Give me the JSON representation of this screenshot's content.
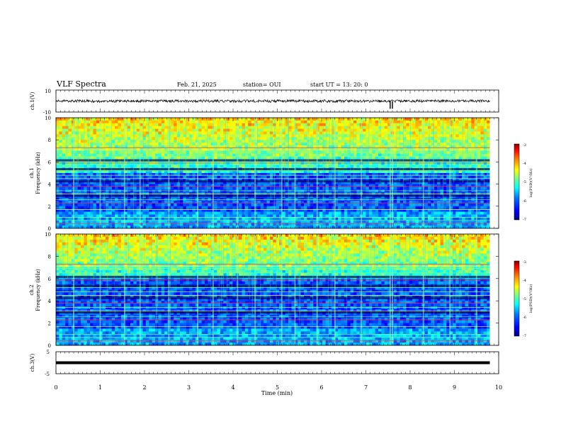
{
  "header": {
    "title": "VLF Spectra",
    "date": "Feb. 21, 2025",
    "station": "station= OUI",
    "start_ut": "start  UT  =   13: 20: 0"
  },
  "chart_data": [
    {
      "id": "ch1-waveform",
      "type": "line",
      "ylabel": "ch.1(V)",
      "ylim": [
        -10,
        10
      ],
      "yticks": [
        "10",
        "-10"
      ],
      "baseline": 0,
      "description_color": "#000000",
      "dropouts_min": [
        7.55,
        7.6
      ]
    },
    {
      "id": "ch1-spectrogram",
      "type": "heatmap",
      "ylabel": "ch.1\nFrequency (kHz)",
      "ylabel_line1": "ch.1",
      "ylabel_line2": "Frequency  (kHz)",
      "ylim": [
        0,
        10
      ],
      "yticks": [
        "0",
        "2",
        "4",
        "6",
        "8",
        "10"
      ],
      "xlim": [
        0,
        10
      ],
      "colorbar": {
        "label": "log(PSD)(V²/Hz)",
        "range": [
          -7,
          -3
        ],
        "ticks": [
          "-3",
          "-4",
          "-5",
          "-6",
          "-7"
        ]
      },
      "horizontal_lines_khz": [
        0.4,
        0.7,
        1.0,
        1.7,
        2.3,
        2.6,
        3.1,
        3.4,
        3.8,
        4.5,
        4.8,
        5.2,
        5.9,
        6.5,
        6.9,
        7.1,
        7.3
      ],
      "bright_bands_khz": [
        [
          5.0,
          10.0
        ]
      ],
      "sferic_times_min": [
        0.4,
        1.0,
        1.55,
        1.9,
        2.55,
        3.2,
        3.55,
        4.1,
        4.5,
        5.1,
        5.4,
        5.9,
        6.3,
        6.9,
        7.55,
        7.6,
        8.3,
        8.9,
        9.5
      ]
    },
    {
      "id": "ch2-spectrogram",
      "type": "heatmap",
      "ylabel": "ch.2\nFrequency (kHz)",
      "ylabel_line1": "ch.2",
      "ylabel_line2": "Frequency  (kHz)",
      "ylim": [
        0,
        10
      ],
      "yticks": [
        "0",
        "2",
        "4",
        "6",
        "8",
        "10"
      ],
      "xlim": [
        0,
        10
      ],
      "colorbar": {
        "label": "log(PSD)(V²/Hz)",
        "range": [
          -7,
          -3
        ],
        "ticks": [
          "-3",
          "-4",
          "-5",
          "-6",
          "-7"
        ]
      },
      "horizontal_lines_khz": [
        0.4,
        0.7,
        1.0,
        1.7,
        2.3,
        2.6,
        3.1,
        3.4,
        3.8,
        4.5,
        4.8,
        5.2,
        5.9,
        6.5,
        6.9,
        7.1,
        7.3
      ],
      "bright_bands_khz": [
        [
          6.0,
          10.0
        ]
      ],
      "sferic_times_min": [
        0.4,
        1.0,
        1.55,
        1.9,
        2.55,
        3.2,
        3.55,
        4.1,
        4.5,
        5.1,
        5.4,
        5.9,
        6.3,
        6.9,
        7.55,
        7.6,
        8.3,
        8.9,
        9.5
      ]
    },
    {
      "id": "ch3-waveform",
      "type": "line",
      "ylabel": "ch.3(V)",
      "ylim": [
        -5,
        5
      ],
      "yticks": [
        "5",
        "-5"
      ],
      "baseline": 0,
      "xlabel": "Time  (min)",
      "xlim": [
        0,
        10
      ],
      "xticks": [
        "0",
        "1",
        "2",
        "3",
        "4",
        "5",
        "6",
        "7",
        "8",
        "9",
        "10"
      ],
      "data_end_min": 9.8
    }
  ],
  "colors": {
    "colormap": [
      "#00007f",
      "#0000ff",
      "#007fff",
      "#00ffff",
      "#7fff7f",
      "#ffff00",
      "#ff7f00",
      "#ff0000",
      "#7f0000"
    ],
    "axis": "#000000",
    "background": "#ffffff"
  }
}
